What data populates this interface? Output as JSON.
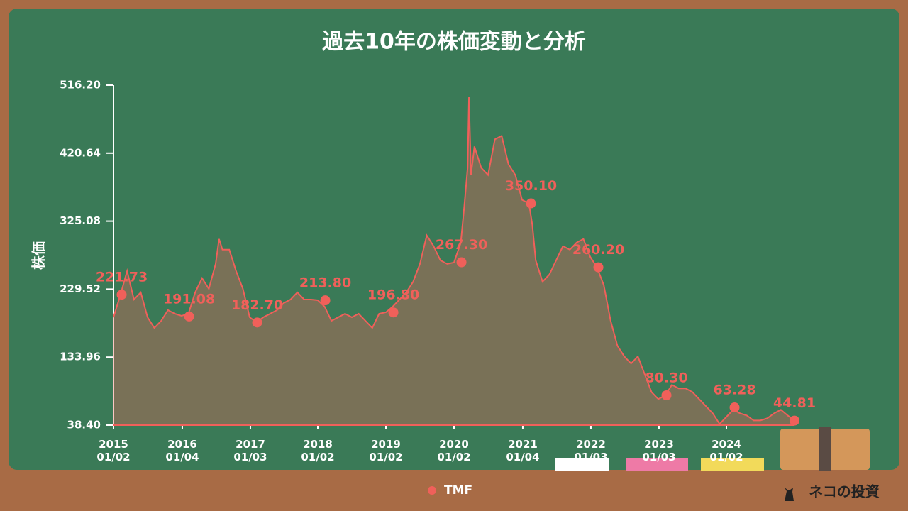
{
  "chart_data": {
    "type": "line",
    "title": "過去10年の株価変動と分析",
    "ylabel": "株価",
    "ylim": [
      38.4,
      516.2
    ],
    "yticks": [
      {
        "value": 38.4,
        "label": "38.40"
      },
      {
        "value": 133.96,
        "label": "133.96"
      },
      {
        "value": 229.52,
        "label": "229.52"
      },
      {
        "value": 325.08,
        "label": "325.08"
      },
      {
        "value": 420.64,
        "label": "420.64"
      },
      {
        "value": 516.2,
        "label": "516.20"
      }
    ],
    "xlim": [
      2015.0,
      2025.0
    ],
    "xticks": [
      {
        "value": 2015.0,
        "label": "2015\n01/02"
      },
      {
        "value": 2016.01,
        "label": "2016\n01/04"
      },
      {
        "value": 2017.01,
        "label": "2017\n01/03"
      },
      {
        "value": 2018.0,
        "label": "2018\n01/02"
      },
      {
        "value": 2019.0,
        "label": "2019\n01/02"
      },
      {
        "value": 2020.0,
        "label": "2020\n01/02"
      },
      {
        "value": 2021.01,
        "label": "2021\n01/04"
      },
      {
        "value": 2022.01,
        "label": "2022\n01/03"
      },
      {
        "value": 2023.01,
        "label": "2023\n01/03"
      },
      {
        "value": 2024.0,
        "label": "2024\n01/02"
      }
    ],
    "legend": "bottom",
    "series": [
      {
        "name": "TMF",
        "color": "#f0605a",
        "x": [
          2015.0,
          2015.1,
          2015.2,
          2015.3,
          2015.4,
          2015.5,
          2015.6,
          2015.7,
          2015.8,
          2015.9,
          2016.0,
          2016.1,
          2016.2,
          2016.3,
          2016.4,
          2016.5,
          2016.55,
          2016.6,
          2016.7,
          2016.8,
          2016.9,
          2017.0,
          2017.1,
          2017.2,
          2017.3,
          2017.4,
          2017.5,
          2017.6,
          2017.7,
          2017.8,
          2017.9,
          2018.0,
          2018.1,
          2018.2,
          2018.3,
          2018.4,
          2018.5,
          2018.6,
          2018.7,
          2018.8,
          2018.9,
          2019.0,
          2019.1,
          2019.2,
          2019.3,
          2019.4,
          2019.5,
          2019.6,
          2019.7,
          2019.8,
          2019.9,
          2020.0,
          2020.1,
          2020.15,
          2020.2,
          2020.22,
          2020.25,
          2020.3,
          2020.4,
          2020.5,
          2020.6,
          2020.7,
          2020.8,
          2020.9,
          2021.0,
          2021.1,
          2021.15,
          2021.2,
          2021.3,
          2021.4,
          2021.5,
          2021.6,
          2021.7,
          2021.8,
          2021.9,
          2022.0,
          2022.1,
          2022.2,
          2022.3,
          2022.4,
          2022.5,
          2022.6,
          2022.7,
          2022.8,
          2022.9,
          2023.0,
          2023.1,
          2023.2,
          2023.3,
          2023.4,
          2023.5,
          2023.6,
          2023.7,
          2023.8,
          2023.9,
          2024.0,
          2024.1,
          2024.2,
          2024.3,
          2024.4,
          2024.5,
          2024.6,
          2024.7,
          2024.8,
          2024.9,
          2025.0
        ],
        "values": [
          190,
          221,
          255,
          215,
          225,
          190,
          175,
          185,
          200,
          195,
          192,
          195,
          225,
          245,
          230,
          265,
          300,
          285,
          285,
          255,
          230,
          190,
          183,
          190,
          195,
          200,
          210,
          215,
          225,
          215,
          215,
          214,
          205,
          185,
          190,
          195,
          190,
          195,
          185,
          175,
          195,
          197,
          205,
          215,
          225,
          240,
          265,
          305,
          290,
          270,
          265,
          267,
          295,
          345,
          400,
          500,
          390,
          430,
          400,
          390,
          440,
          445,
          405,
          390,
          355,
          350,
          320,
          270,
          240,
          250,
          270,
          290,
          285,
          295,
          300,
          275,
          260,
          235,
          185,
          150,
          135,
          125,
          135,
          110,
          85,
          75,
          80,
          95,
          90,
          90,
          85,
          75,
          65,
          55,
          40,
          50,
          60,
          55,
          52,
          45,
          45,
          48,
          55,
          60,
          52,
          45
        ]
      }
    ],
    "annotations": {
      "x": [
        2015.12,
        2016.11,
        2017.11,
        2018.11,
        2019.11,
        2020.11,
        2021.13,
        2022.12,
        2023.12,
        2024.12,
        2025.0
      ],
      "values": [
        221.73,
        191.08,
        182.7,
        213.8,
        196.8,
        267.3,
        350.1,
        260.2,
        80.3,
        63.28,
        44.81
      ],
      "value_labels": [
        "221.73",
        "191.08",
        "182.70",
        "213.80",
        "196.80",
        "267.30",
        "350.10",
        "260.20",
        "80.30",
        "63.28",
        "44.81"
      ]
    },
    "brand": "ネコの投資"
  }
}
